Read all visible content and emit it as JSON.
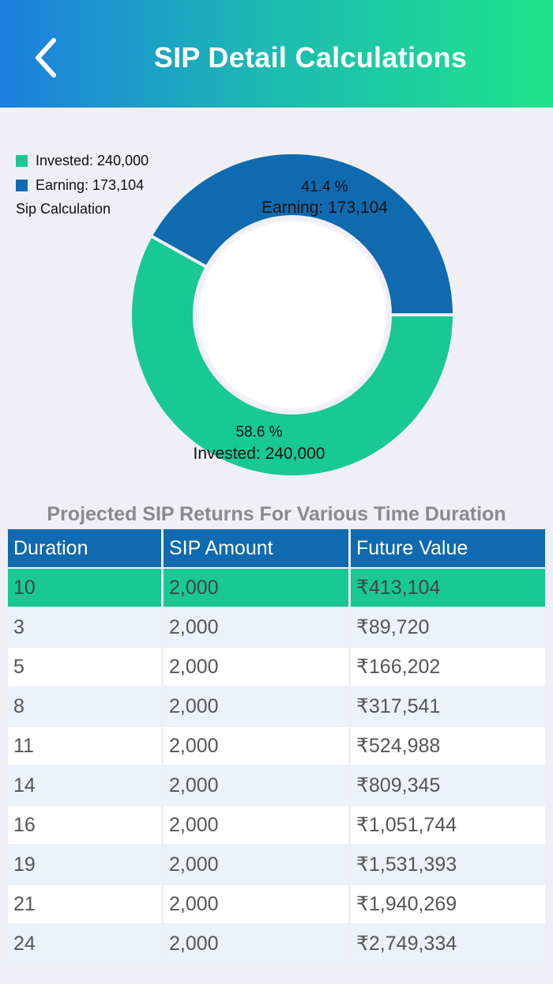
{
  "header": {
    "title": "SIP Detail Calculations"
  },
  "colors": {
    "invested": "#18c991",
    "earning": "#0f6aaf"
  },
  "legend": {
    "items": [
      {
        "label": "Invested: 240,000"
      },
      {
        "label": "Earning: 173,104"
      }
    ],
    "description": "Sip Calculation"
  },
  "chart_data": {
    "type": "pie",
    "categories": [
      "Invested",
      "Earning"
    ],
    "values": [
      240000,
      173104
    ],
    "slices": [
      {
        "name": "Invested",
        "value": 240000,
        "percent_label": "58.6 %",
        "value_label": "Invested: 240,000"
      },
      {
        "name": "Earning",
        "value": 173104,
        "percent_label": "41.4 %",
        "value_label": "Earning: 173,104"
      }
    ],
    "description": "Sip Calculation"
  },
  "table": {
    "title": "Projected SIP Returns For Various Time Duration",
    "headers": [
      "Duration",
      "SIP Amount",
      "Future Value"
    ],
    "rows": [
      {
        "duration": "10",
        "amount": "2,000",
        "future": "₹413,104",
        "highlight": true
      },
      {
        "duration": "3",
        "amount": "2,000",
        "future": "₹89,720"
      },
      {
        "duration": "5",
        "amount": "2,000",
        "future": "₹166,202"
      },
      {
        "duration": "8",
        "amount": "2,000",
        "future": "₹317,541"
      },
      {
        "duration": "11",
        "amount": "2,000",
        "future": "₹524,988"
      },
      {
        "duration": "14",
        "amount": "2,000",
        "future": "₹809,345"
      },
      {
        "duration": "16",
        "amount": "2,000",
        "future": "₹1,051,744"
      },
      {
        "duration": "19",
        "amount": "2,000",
        "future": "₹1,531,393"
      },
      {
        "duration": "21",
        "amount": "2,000",
        "future": "₹1,940,269"
      },
      {
        "duration": "24",
        "amount": "2,000",
        "future": "₹2,749,334"
      }
    ]
  }
}
